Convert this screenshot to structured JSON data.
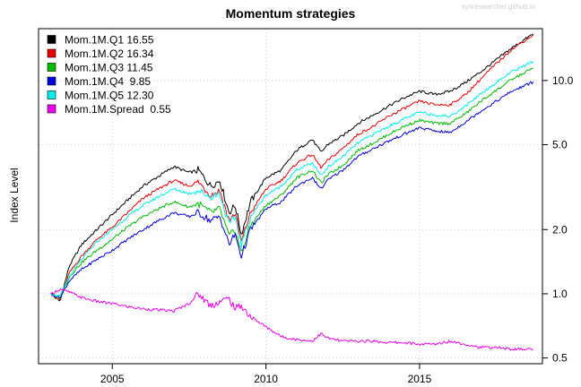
{
  "watermark": "sysresearcher.github.io",
  "chart_data": {
    "type": "line",
    "title": "Momentum strategies",
    "xlabel": "",
    "ylabel": "Index Level",
    "log_y": true,
    "xlim": [
      2002.6,
      2019.0
    ],
    "ylim": [
      0.47,
      17.5
    ],
    "x_ticks": [
      2005,
      2010,
      2015
    ],
    "x_tick_labels": [
      "2005",
      "2010",
      "2015"
    ],
    "y_ticks": [
      0.5,
      1.0,
      2.0,
      5.0,
      10.0
    ],
    "y_tick_labels": [
      "0.5",
      "1.0",
      "2.0",
      "5.0",
      "10.0"
    ],
    "y_axis_side": "right",
    "grid": true,
    "legend_position": "top-left",
    "x": [
      2003.0,
      2003.3,
      2003.6,
      2004.0,
      2004.5,
      2005.0,
      2005.5,
      2006.0,
      2006.5,
      2007.0,
      2007.5,
      2007.8,
      2008.2,
      2008.5,
      2008.8,
      2009.0,
      2009.2,
      2009.5,
      2010.0,
      2010.5,
      2011.0,
      2011.5,
      2011.8,
      2012.0,
      2012.5,
      2013.0,
      2013.5,
      2014.0,
      2014.5,
      2015.0,
      2015.5,
      2016.0,
      2016.5,
      2017.0,
      2017.5,
      2018.0,
      2018.7
    ],
    "series": [
      {
        "name": "Mom.1M.Q1 16.55",
        "color": "#000000",
        "values": [
          1.0,
          0.92,
          1.35,
          1.7,
          2.0,
          2.35,
          2.75,
          3.2,
          3.55,
          3.95,
          3.7,
          3.8,
          3.2,
          3.4,
          2.4,
          2.6,
          1.9,
          2.7,
          3.5,
          3.8,
          4.7,
          5.3,
          4.6,
          5.0,
          5.5,
          6.3,
          6.9,
          7.6,
          8.3,
          8.9,
          8.6,
          8.9,
          9.8,
          11.0,
          12.5,
          14.2,
          16.55
        ]
      },
      {
        "name": "Mom.1M.Q2 16.34",
        "color": "#ee0000",
        "values": [
          1.0,
          0.93,
          1.25,
          1.5,
          1.8,
          2.05,
          2.4,
          2.8,
          3.1,
          3.4,
          3.2,
          3.35,
          2.9,
          3.05,
          2.2,
          2.4,
          1.75,
          2.4,
          3.1,
          3.4,
          4.1,
          4.5,
          3.9,
          4.2,
          4.8,
          5.6,
          6.1,
          6.8,
          7.4,
          8.0,
          7.7,
          7.7,
          8.6,
          10.2,
          12.0,
          14.0,
          16.34
        ]
      },
      {
        "name": "Mom.1M.Q3 11.45",
        "color": "#00bb00",
        "values": [
          1.0,
          0.95,
          1.2,
          1.4,
          1.6,
          1.8,
          2.05,
          2.3,
          2.5,
          2.7,
          2.55,
          2.65,
          2.4,
          2.5,
          1.85,
          2.0,
          1.55,
          2.1,
          2.6,
          2.9,
          3.5,
          3.8,
          3.3,
          3.6,
          4.0,
          4.7,
          5.1,
          5.6,
          6.1,
          6.5,
          6.3,
          6.3,
          7.0,
          8.0,
          9.0,
          10.1,
          11.45
        ]
      },
      {
        "name": "Mom.1M.Q4  9.85",
        "color": "#0000dd",
        "values": [
          1.0,
          0.96,
          1.15,
          1.3,
          1.45,
          1.6,
          1.8,
          2.0,
          2.2,
          2.4,
          2.3,
          2.4,
          2.2,
          2.3,
          1.7,
          1.9,
          1.5,
          2.0,
          2.5,
          2.7,
          3.2,
          3.5,
          3.1,
          3.4,
          3.8,
          4.4,
          4.8,
          5.2,
          5.6,
          6.0,
          5.8,
          5.7,
          6.4,
          7.2,
          8.0,
          8.9,
          9.85
        ]
      },
      {
        "name": "Mom.1M.Q5 12.30",
        "color": "#00eeee",
        "values": [
          1.0,
          0.97,
          1.2,
          1.45,
          1.75,
          2.0,
          2.3,
          2.6,
          2.85,
          3.1,
          2.95,
          3.05,
          2.85,
          2.95,
          2.1,
          2.3,
          1.7,
          2.3,
          2.9,
          3.2,
          3.8,
          4.1,
          3.6,
          3.9,
          4.4,
          5.1,
          5.6,
          6.1,
          6.6,
          7.1,
          6.9,
          6.8,
          7.6,
          8.7,
          9.8,
          11.0,
          12.3
        ]
      },
      {
        "name": "Mom.1M.Spread  0.55",
        "color": "#ee00ee",
        "values": [
          1.0,
          1.05,
          1.02,
          0.96,
          0.92,
          0.9,
          0.87,
          0.85,
          0.84,
          0.83,
          0.9,
          1.0,
          0.88,
          0.92,
          0.95,
          0.85,
          0.88,
          0.78,
          0.7,
          0.63,
          0.61,
          0.6,
          0.65,
          0.62,
          0.6,
          0.6,
          0.6,
          0.59,
          0.59,
          0.58,
          0.58,
          0.6,
          0.58,
          0.56,
          0.56,
          0.55,
          0.55
        ]
      }
    ]
  }
}
